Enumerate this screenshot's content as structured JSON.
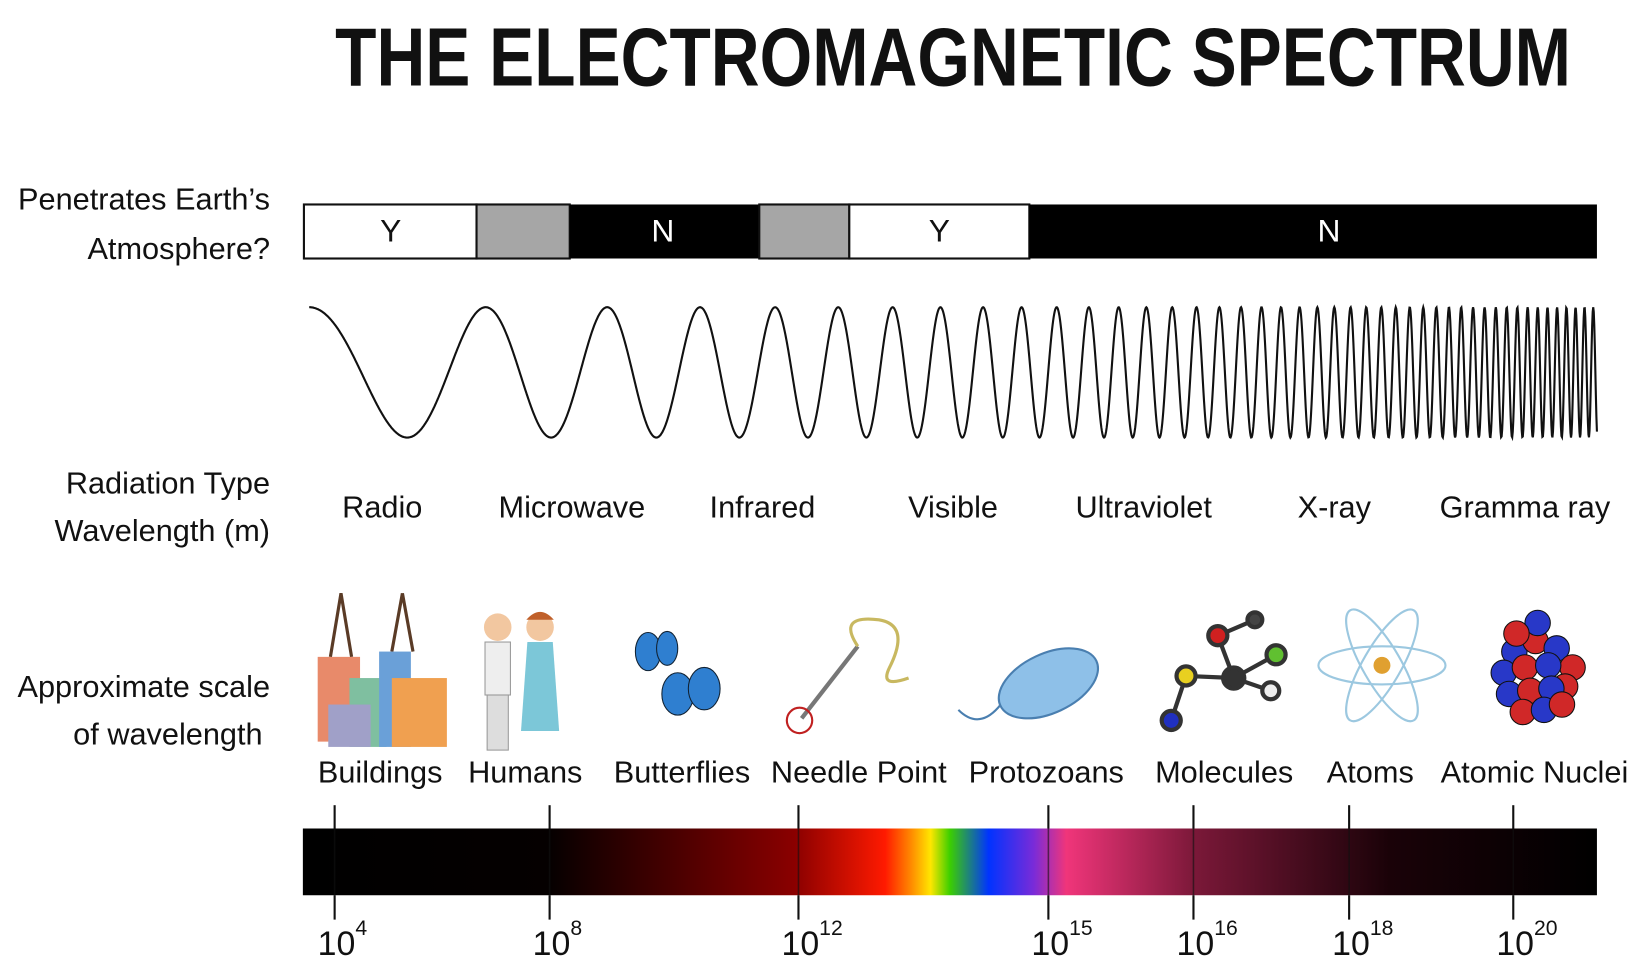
{
  "title": "THE ELECTROMAGNETIC SPECTRUM",
  "rows": {
    "atmosphere": [
      "Penetrates Earth’s",
      "Atmosphere?"
    ],
    "radiation": [
      "Radiation Type",
      "Wavelength (m)"
    ],
    "scale": [
      "Approximate scale",
      "of wavelength"
    ]
  },
  "atmosphere_segments": [
    "Y",
    "N",
    "Y",
    "N"
  ],
  "radiation_types": [
    "Radio",
    "Microwave",
    "Infrared",
    "Visible",
    "Ultraviolet",
    "X-ray",
    "Gramma ray"
  ],
  "scale_objects": [
    "Buildings",
    "Humans",
    "Butterflies",
    "Needle Point",
    "Protozoans",
    "Molecules",
    "Atoms",
    "Atomic Nuclei"
  ],
  "ticks": [
    {
      "base": "10",
      "exponent": "4"
    },
    {
      "base": "10",
      "exponent": "8"
    },
    {
      "base": "10",
      "exponent": "12"
    },
    {
      "base": "10",
      "exponent": "15"
    },
    {
      "base": "10",
      "exponent": "16"
    },
    {
      "base": "10",
      "exponent": "18"
    },
    {
      "base": "10",
      "exponent": "20"
    }
  ]
}
